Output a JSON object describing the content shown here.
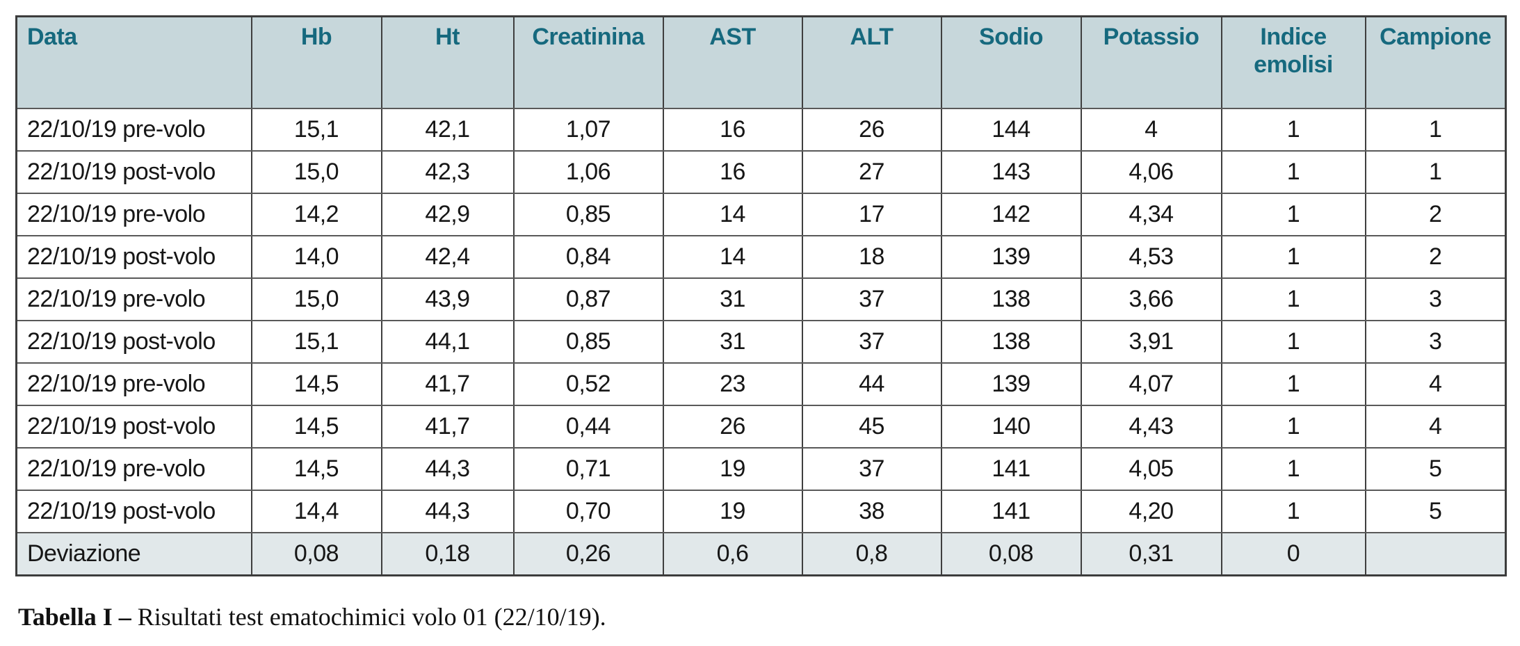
{
  "table": {
    "headers": [
      "Data",
      "Hb",
      "Ht",
      "Creatinina",
      "AST",
      "ALT",
      "Sodio",
      "Potassio",
      "Indice emolisi",
      "Campione"
    ],
    "rows": [
      [
        "22/10/19 pre-volo",
        "15,1",
        "42,1",
        "1,07",
        "16",
        "26",
        "144",
        "4",
        "1",
        "1"
      ],
      [
        "22/10/19 post-volo",
        "15,0",
        "42,3",
        "1,06",
        "16",
        "27",
        "143",
        "4,06",
        "1",
        "1"
      ],
      [
        "22/10/19 pre-volo",
        "14,2",
        "42,9",
        "0,85",
        "14",
        "17",
        "142",
        "4,34",
        "1",
        "2"
      ],
      [
        "22/10/19 post-volo",
        "14,0",
        "42,4",
        "0,84",
        "14",
        "18",
        "139",
        "4,53",
        "1",
        "2"
      ],
      [
        "22/10/19 pre-volo",
        "15,0",
        "43,9",
        "0,87",
        "31",
        "37",
        "138",
        "3,66",
        "1",
        "3"
      ],
      [
        "22/10/19 post-volo",
        "15,1",
        "44,1",
        "0,85",
        "31",
        "37",
        "138",
        "3,91",
        "1",
        "3"
      ],
      [
        "22/10/19 pre-volo",
        "14,5",
        "41,7",
        "0,52",
        "23",
        "44",
        "139",
        "4,07",
        "1",
        "4"
      ],
      [
        "22/10/19 post-volo",
        "14,5",
        "41,7",
        "0,44",
        "26",
        "45",
        "140",
        "4,43",
        "1",
        "4"
      ],
      [
        "22/10/19 pre-volo",
        "14,5",
        "44,3",
        "0,71",
        "19",
        "37",
        "141",
        "4,05",
        "1",
        "5"
      ],
      [
        "22/10/19 post-volo",
        "14,4",
        "44,3",
        "0,70",
        "19",
        "38",
        "141",
        "4,20",
        "1",
        "5"
      ]
    ],
    "deviation_row": [
      "Deviazione",
      "0,08",
      "0,18",
      "0,26",
      "0,6",
      "0,8",
      "0,08",
      "0,31",
      "0",
      ""
    ]
  },
  "caption": {
    "label": "Tabella I –",
    "text": " Risultati test ematochimici volo 01 (22/10/19)."
  },
  "colors": {
    "header_bg": "#c7d7db",
    "header_text": "#16697e",
    "deviation_bg": "#e1e8ea",
    "border": "#3f3f3f"
  }
}
